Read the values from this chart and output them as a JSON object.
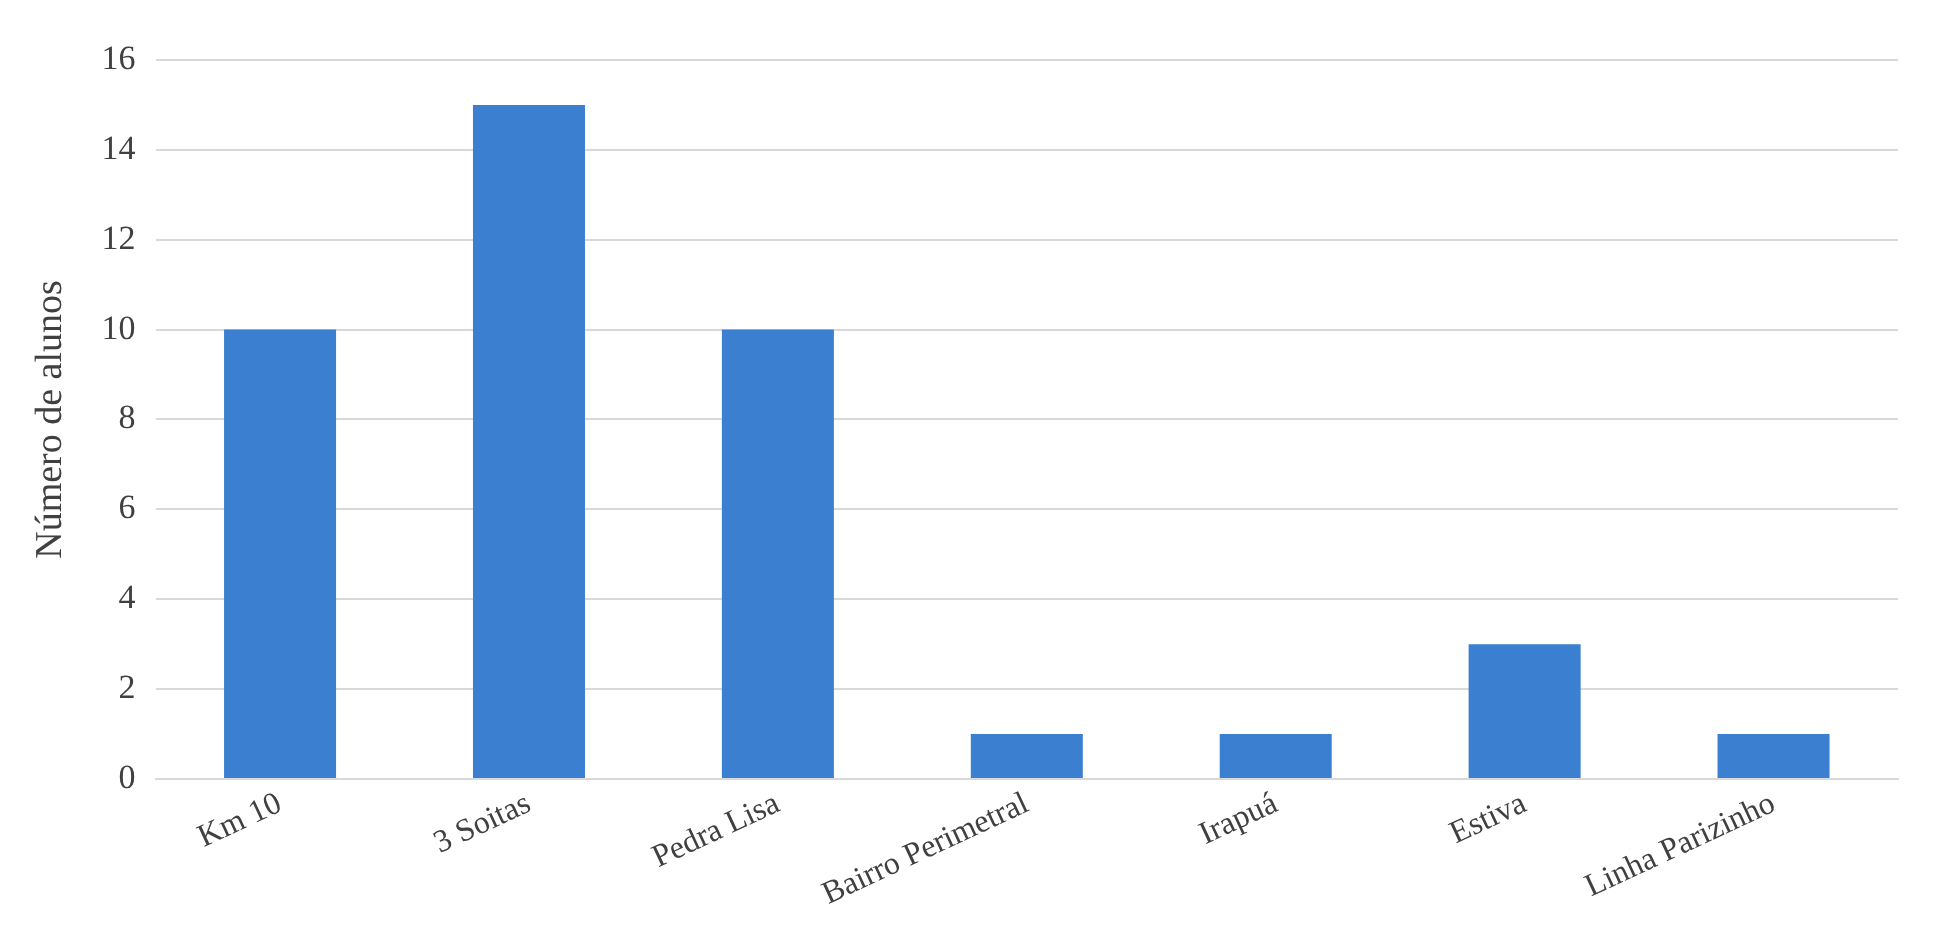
{
  "chart_data": {
    "type": "bar",
    "ylabel": "Número de alunos",
    "categories": [
      "Km 10",
      "3 Soitas",
      "Pedra Lisa",
      "Bairro Perimetral",
      "Irapuá",
      "Estiva",
      "Linha Parizinho"
    ],
    "values": [
      10,
      15,
      10,
      1,
      1,
      3,
      1
    ],
    "color": "#3a7fd0",
    "ylim": [
      0,
      16
    ],
    "yticks": [
      0,
      2,
      4,
      6,
      8,
      10,
      12,
      14,
      16
    ],
    "grid": "y"
  }
}
